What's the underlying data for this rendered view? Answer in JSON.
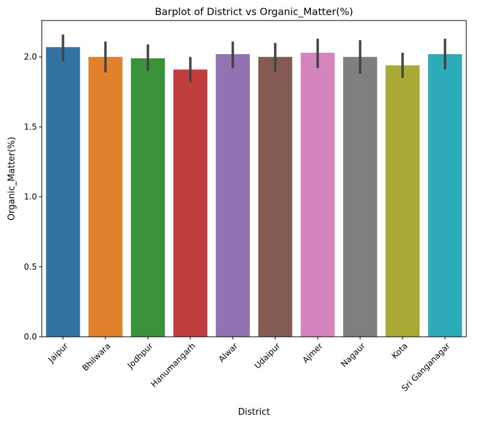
{
  "chart_data": {
    "type": "bar",
    "title": "Barplot of District vs Organic_Matter(%)",
    "xlabel": "District",
    "ylabel": "Organic_Matter(%)",
    "ylim": [
      0,
      2.26
    ],
    "yticks": [
      "0.0",
      "0.5",
      "1.0",
      "1.5",
      "2.0"
    ],
    "grid": false,
    "legend": "none",
    "categories": [
      "Jaipur",
      "Bhilwara",
      "Jodhpur",
      "Hanumangarh",
      "Alwar",
      "Udaipur",
      "Ajmer",
      "Nagaur",
      "Kota",
      "Sri Ganganagar"
    ],
    "values": [
      2.07,
      2.0,
      1.99,
      1.91,
      2.02,
      2.0,
      2.03,
      2.0,
      1.94,
      2.02
    ],
    "ci_low": [
      1.97,
      1.89,
      1.9,
      1.82,
      1.92,
      1.89,
      1.92,
      1.88,
      1.85,
      1.91
    ],
    "ci_high": [
      2.16,
      2.11,
      2.09,
      2.0,
      2.11,
      2.1,
      2.13,
      2.12,
      2.03,
      2.13
    ],
    "colors": [
      "#3274a1",
      "#e1812c",
      "#3a923a",
      "#c03d3e",
      "#9372b2",
      "#845b53",
      "#d684bd",
      "#7f7f7f",
      "#a9aa35",
      "#2eabb8"
    ],
    "errorbar_color": "#424242"
  }
}
